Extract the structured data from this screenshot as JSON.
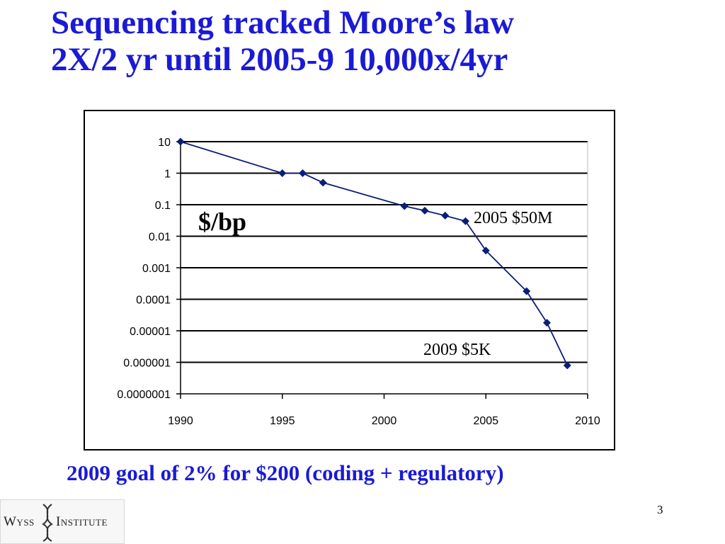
{
  "slide": {
    "title_line1": "Sequencing tracked Moore’s law",
    "title_line2": "2X/2 yr until 2005-9 10,000x/4yr",
    "caption": "2009 goal of 2% for $200 (coding + regulatory)",
    "page_number": "3",
    "logo": {
      "left_word": "Wyss",
      "right_word": "Institute"
    }
  },
  "colors": {
    "title": "#1a1ad6",
    "series": "#0a1e78",
    "gridline": "#000000"
  },
  "chart_data": {
    "type": "line",
    "scale_y": "log10",
    "x": [
      1990,
      1995,
      1996,
      1997,
      2001,
      2002,
      2003,
      2004,
      2005,
      2007,
      2008,
      2009
    ],
    "y": [
      10,
      1,
      1,
      0.5,
      0.09,
      0.065,
      0.045,
      0.03,
      0.0035,
      0.00018,
      1.8e-05,
      8e-07
    ],
    "xlim": [
      1990,
      2010
    ],
    "ylim": [
      1e-07,
      10
    ],
    "x_ticks": [
      "1990",
      "1995",
      "2000",
      "2005",
      "2010"
    ],
    "x_tick_values": [
      1990,
      1995,
      2000,
      2005,
      2010
    ],
    "y_ticks": [
      "10",
      "1",
      "0.1",
      "0.01",
      "0.001",
      "0.0001",
      "0.00001",
      "0.000001",
      "0.0000001"
    ],
    "grid": true,
    "marker": "diamond",
    "annotations": {
      "unit_label": "$/bp",
      "label_2005": "2005 $50M",
      "label_2009": "2009 $5K"
    }
  }
}
